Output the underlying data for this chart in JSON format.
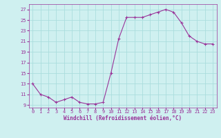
{
  "x": [
    0,
    1,
    2,
    3,
    4,
    5,
    6,
    7,
    8,
    9,
    10,
    11,
    12,
    13,
    14,
    15,
    16,
    17,
    18,
    19,
    20,
    21,
    22,
    23
  ],
  "y": [
    13,
    11,
    10.5,
    9.5,
    10,
    10.5,
    9.5,
    9.2,
    9.2,
    9.5,
    15,
    21.5,
    25.5,
    25.5,
    25.5,
    26,
    26.5,
    27,
    26.5,
    24.5,
    22,
    21,
    20.5,
    20.5
  ],
  "line_color": "#993399",
  "marker": "+",
  "marker_size": 3,
  "bg_color": "#cff0f0",
  "grid_color": "#aadddd",
  "xlabel": "Windchill (Refroidissement éolien,°C)",
  "xlabel_color": "#993399",
  "tick_color": "#993399",
  "ylim": [
    8.5,
    28
  ],
  "yticks": [
    9,
    11,
    13,
    15,
    17,
    19,
    21,
    23,
    25,
    27
  ],
  "xlim": [
    -0.5,
    23.5
  ],
  "xticks": [
    0,
    1,
    2,
    3,
    4,
    5,
    6,
    7,
    8,
    9,
    10,
    11,
    12,
    13,
    14,
    15,
    16,
    17,
    18,
    19,
    20,
    21,
    22,
    23
  ],
  "tick_fontsize": 5.0,
  "xlabel_fontsize": 5.5
}
